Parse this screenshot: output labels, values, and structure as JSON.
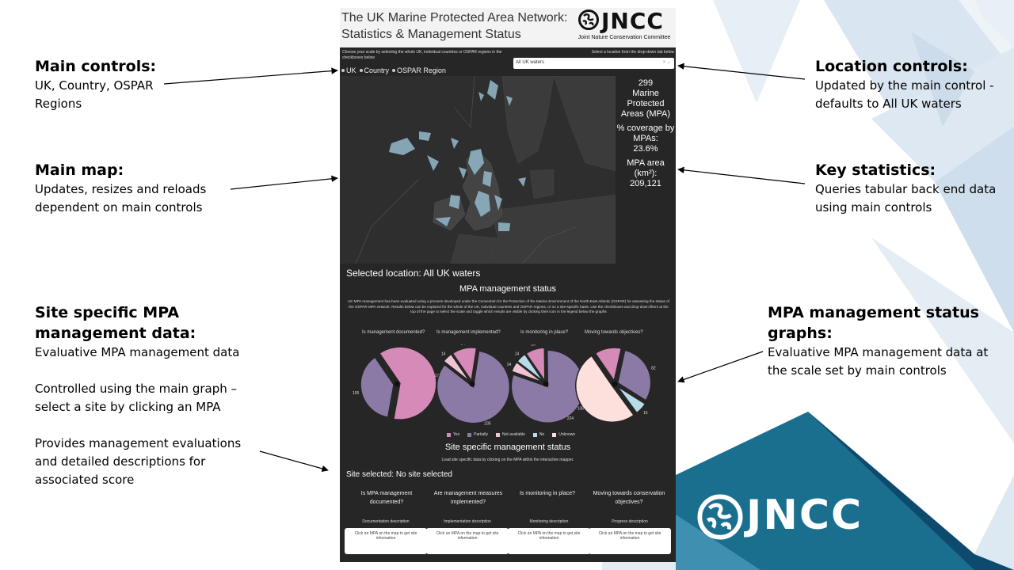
{
  "dashboard": {
    "title": "The UK Marine Protected Area Network:\nStatistics & Management Status",
    "logo_word": "JNCC",
    "logo_sub": "Joint Nature Conservation Committee",
    "scale_instruction": "Choose your scale by selecting the whole UK, individual countries or OSPAR regions in the checkboxes below",
    "location_instruction": "Select a location from the drop-down tab below",
    "scale_options": [
      "UK",
      "Country",
      "OSPAR Region"
    ],
    "location_value": "All UK waters",
    "stats": {
      "count": "299",
      "count_label": "Marine Protected Areas (MPA)",
      "coverage_label": "% coverage by MPAs:",
      "coverage_value": "23.6%",
      "area_label": "MPA area (km²):",
      "area_value": "209,121"
    },
    "selected_location": "Selected location: All UK waters",
    "mgmt_title": "MPA management status",
    "mgmt_desc": "UK MPA management has been evaluated using a process developed under the Convention for the Protection of the Marine Environment of the North-East Atlantic (OSPAR) for assessing the status of the OSPAR MPA network. Results below can be explored for the whole of the UK, individual countries and OSPAR regions, or on a site-specific basis. Use the checkboxes and drop-down filters at the top of the page to select the scale and toggle which results are visible by clicking their icon in the legend below the graphs",
    "pie_questions": [
      "Is management documented?",
      "Is management implemented?",
      "Is monitoring in place?",
      "Moving towards objectives?"
    ],
    "legend": [
      "Yes",
      "Partially",
      "Not available",
      "No",
      "Unknown"
    ],
    "site_title": "Site specific management status",
    "site_instruction": "Load site specific data by clicking on the MPA within the interactive mapper.",
    "site_selected": "Site selected: No site selected",
    "site_questions": [
      "Is MPA management documented?",
      "Are management measures implemented?",
      "Is monitoring in place?",
      "Moving towards conservation objectives?"
    ],
    "desc_labels": [
      "Documentation description",
      "Implementation description",
      "Monitoring description",
      "Progress description"
    ],
    "desc_placeholder": "Click an MPA on the map to get site information"
  },
  "chart_data": {
    "type": "pie",
    "legend": [
      "Yes",
      "Partially",
      "Not available",
      "No",
      "Unknown"
    ],
    "colors": {
      "Yes": "#d58ab8",
      "Partially": "#8c7aa6",
      "Not available": "#f0c4d4",
      "No": "#b7dce8",
      "Unknown": "#fde0dc"
    },
    "pies": [
      {
        "title": "Is management documented?",
        "values": {
          "Yes": 174,
          "Partially": 105
        }
      },
      {
        "title": "Is management implemented?",
        "values": {
          "Yes": 34,
          "Partially": 235,
          "Not available": 14
        }
      },
      {
        "title": "Is monitoring in place?",
        "values": {
          "Yes": 26,
          "Partially": 224,
          "Not available": 14,
          "No": 14
        }
      },
      {
        "title": "Moving towards objectives?",
        "values": {
          "Yes": 35,
          "Partially": 82,
          "No": 16,
          "Unknown": 136
        }
      }
    ]
  },
  "annotations": {
    "main_controls": {
      "title": "Main controls:",
      "body": "UK, Country, OSPAR\nRegions"
    },
    "main_map": {
      "title": "Main map:",
      "body": "Updates, resizes and reloads\ndependent on main controls"
    },
    "site_specific": {
      "title": "Site specific MPA\nmanagement data:",
      "body1": "Evaluative MPA management data",
      "body2": "Controlled using the main graph –\nselect a site by clicking an MPA",
      "body3": "Provides management evaluations\nand detailed descriptions for\nassociated score"
    },
    "location_controls": {
      "title": "Location controls:",
      "body": "Updated by the main control -\ndefaults to All UK  waters"
    },
    "key_statistics": {
      "title": "Key statistics:",
      "body": "Queries tabular back end data\nusing main controls"
    },
    "mgmt_graphs": {
      "title": "MPA management status\ngraphs:",
      "body": "Evaluative MPA management data at\nthe scale set by main controls"
    }
  },
  "logo_big": "JNCC",
  "colors": {
    "navy": "#0e4a6e",
    "teal": "#1a6f8f",
    "pale_blue": "#dce8f2"
  }
}
